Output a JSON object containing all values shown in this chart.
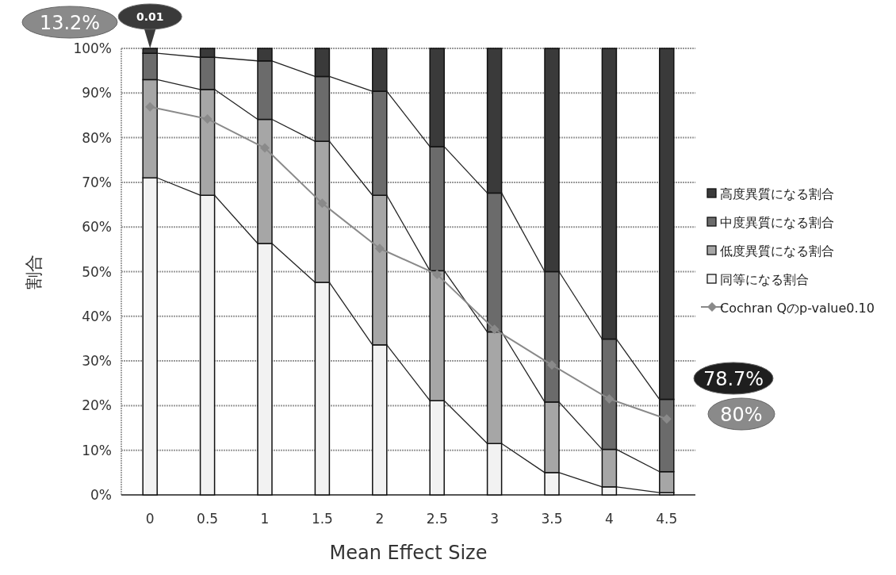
{
  "chart_data": {
    "type": "bar",
    "stacked": true,
    "xlabel": "Mean Effect Size",
    "ylabel": "割合",
    "categories": [
      "0",
      "0.5",
      "1",
      "1.5",
      "2",
      "2.5",
      "3",
      "3.5",
      "4",
      "4.5"
    ],
    "series": [
      {
        "name": "同等になる割合",
        "color": "#f2f2f2",
        "values": [
          71,
          67.1,
          56.3,
          47.6,
          33.6,
          21.1,
          11.5,
          5,
          1.8,
          0.5
        ]
      },
      {
        "name": "低度異質になる割合",
        "color": "#a6a6a6",
        "values": [
          22,
          23.7,
          27.8,
          31.6,
          33.5,
          29.1,
          25,
          15.8,
          8.4,
          4.7
        ]
      },
      {
        "name": "中度異質になる割合",
        "color": "#6b6b6b",
        "values": [
          5.9,
          7.2,
          13.1,
          14.5,
          23.3,
          27.8,
          31.1,
          29.2,
          24.7,
          16.2
        ]
      },
      {
        "name": "高度異質になる割合",
        "color": "#3a3a3a",
        "values": [
          1.1,
          2,
          2.8,
          6.3,
          9.6,
          22,
          32.4,
          50,
          65.1,
          78.6
        ]
      },
      {
        "name": "Cochran Qのp-value0.10",
        "type": "line",
        "color": "#8a8a8a",
        "marker": "diamond",
        "values": [
          86.9,
          84.2,
          77.7,
          65.3,
          55.2,
          49.4,
          37.1,
          29.1,
          21.5,
          17
        ]
      }
    ],
    "ylim": [
      0,
      100
    ],
    "yticks": [
      {
        "value": 0,
        "label": "0%"
      },
      {
        "value": 10,
        "label": "10%"
      },
      {
        "value": 20,
        "label": "20%"
      },
      {
        "value": 30,
        "label": "30%"
      },
      {
        "value": 40,
        "label": "40%"
      },
      {
        "value": 50,
        "label": "50%"
      },
      {
        "value": 60,
        "label": "60%"
      },
      {
        "value": 70,
        "label": "70%"
      },
      {
        "value": 80,
        "label": "80%"
      },
      {
        "value": 90,
        "label": "90%"
      },
      {
        "value": 100,
        "label": "100%"
      }
    ],
    "grid": "y",
    "legend": "right",
    "annotations": [
      {
        "text": "0.01",
        "x": "0",
        "y": 100
      },
      "13.2%",
      "78.7%",
      "80%"
    ]
  }
}
